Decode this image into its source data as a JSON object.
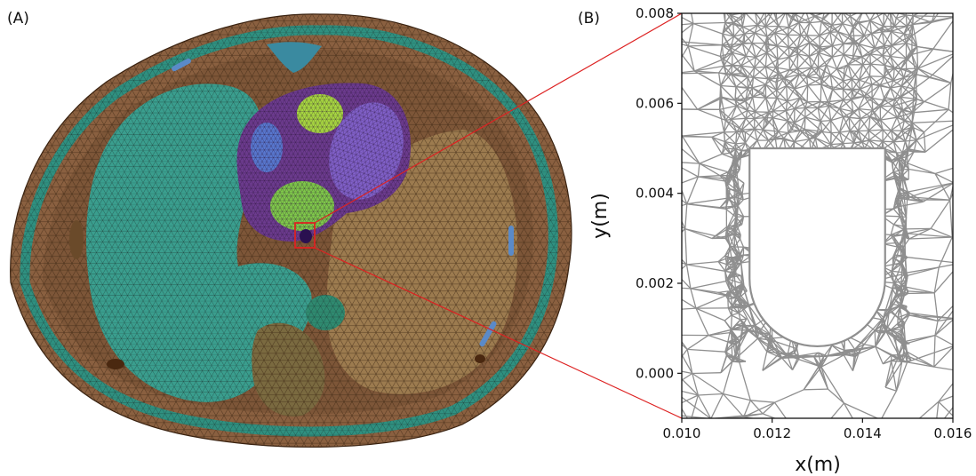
{
  "panel_a": {
    "label": "(A)"
  },
  "panel_b": {
    "label": "(B)"
  },
  "colors": {
    "tissue": "#8a6040",
    "tissue_mesh": "#4a2f17",
    "skin_ring": "#2f9080",
    "lung": "#3a9e8e",
    "heart": "#6c3b8e",
    "ventricle": "#8060c8",
    "atrium": "#5878d0",
    "aorta": "#a8d840",
    "green_chamber": "#7fc84a",
    "liver": "#7a6a40",
    "zoom_line": "#dd2222",
    "mesh_gray": "#8f8f8f"
  },
  "chart_data": {
    "type": "mesh",
    "xlabel": "x(m)",
    "ylabel": "y(m)",
    "xlim": [
      0.01,
      0.016
    ],
    "ylim": [
      -0.001,
      0.008
    ],
    "x_ticks": [
      "0.010",
      "0.012",
      "0.014",
      "0.016"
    ],
    "y_ticks": [
      "0.000",
      "0.002",
      "0.004",
      "0.006",
      "0.008"
    ],
    "cavity": {
      "x_left": 0.0115,
      "x_right": 0.0145,
      "y_top": 0.005,
      "y_arc_center": 0.0021,
      "y_bottom": 0.0006
    }
  }
}
